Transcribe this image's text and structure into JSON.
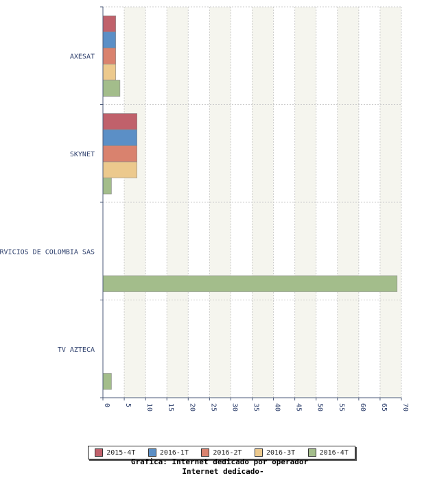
{
  "chart_data": {
    "type": "bar",
    "orientation": "horizontal",
    "categories": [
      "AXESAT",
      "SKYNET",
      "RVICIOS DE COLOMBIA SAS",
      "TV AZTECA"
    ],
    "series": [
      {
        "name": "2015-4T",
        "color": "#c0616b",
        "values": [
          3,
          8,
          0,
          0
        ]
      },
      {
        "name": "2016-1T",
        "color": "#5b8fc6",
        "values": [
          3,
          8,
          0,
          0
        ]
      },
      {
        "name": "2016-2T",
        "color": "#d9826e",
        "values": [
          3,
          8,
          0,
          0
        ]
      },
      {
        "name": "2016-3T",
        "color": "#ecc98d",
        "values": [
          3,
          8,
          0,
          0
        ]
      },
      {
        "name": "2016-4T",
        "color": "#a3bd8b",
        "values": [
          4,
          2,
          69,
          2
        ]
      }
    ],
    "xlim": [
      0,
      70
    ],
    "xticks": [
      0,
      5,
      10,
      15,
      20,
      25,
      30,
      35,
      40,
      45,
      50,
      55,
      60,
      65,
      70
    ],
    "grid": true,
    "legend_position": "bottom"
  },
  "captions": {
    "line1": "Grafica: Internet dedicado por operador",
    "line2": "Internet dedicado-"
  }
}
